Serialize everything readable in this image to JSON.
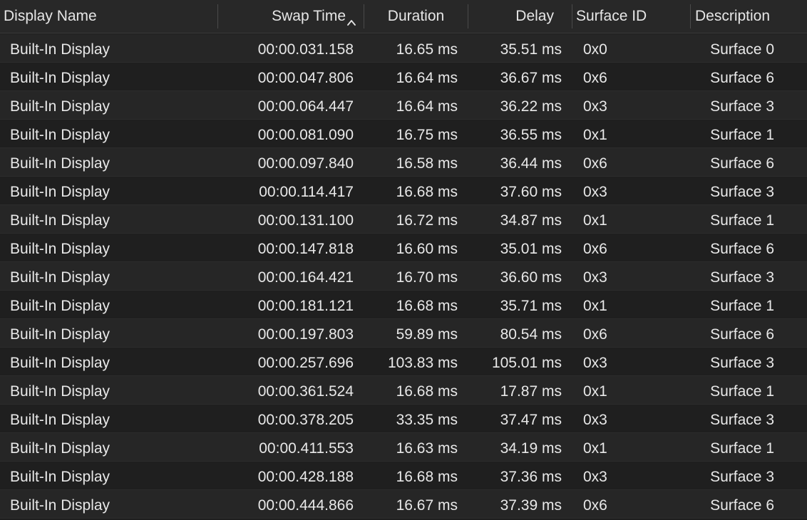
{
  "columns": {
    "display_name": "Display Name",
    "swap_time": "Swap Time",
    "duration": "Duration",
    "delay": "Delay",
    "surface_id": "Surface ID",
    "description": "Description",
    "sort_icon": "chevron-up-icon"
  },
  "rows": [
    {
      "display_name": "Built-In Display",
      "swap_time": "00:00.031.158",
      "duration": "16.65 ms",
      "delay": "35.51 ms",
      "surface_id": "0x0",
      "description": "Surface 0"
    },
    {
      "display_name": "Built-In Display",
      "swap_time": "00:00.047.806",
      "duration": "16.64 ms",
      "delay": "36.67 ms",
      "surface_id": "0x6",
      "description": "Surface 6"
    },
    {
      "display_name": "Built-In Display",
      "swap_time": "00:00.064.447",
      "duration": "16.64 ms",
      "delay": "36.22 ms",
      "surface_id": "0x3",
      "description": "Surface 3"
    },
    {
      "display_name": "Built-In Display",
      "swap_time": "00:00.081.090",
      "duration": "16.75 ms",
      "delay": "36.55 ms",
      "surface_id": "0x1",
      "description": "Surface 1"
    },
    {
      "display_name": "Built-In Display",
      "swap_time": "00:00.097.840",
      "duration": "16.58 ms",
      "delay": "36.44 ms",
      "surface_id": "0x6",
      "description": "Surface 6"
    },
    {
      "display_name": "Built-In Display",
      "swap_time": "00:00.114.417",
      "duration": "16.68 ms",
      "delay": "37.60 ms",
      "surface_id": "0x3",
      "description": "Surface 3"
    },
    {
      "display_name": "Built-In Display",
      "swap_time": "00:00.131.100",
      "duration": "16.72 ms",
      "delay": "34.87 ms",
      "surface_id": "0x1",
      "description": "Surface 1"
    },
    {
      "display_name": "Built-In Display",
      "swap_time": "00:00.147.818",
      "duration": "16.60 ms",
      "delay": "35.01 ms",
      "surface_id": "0x6",
      "description": "Surface 6"
    },
    {
      "display_name": "Built-In Display",
      "swap_time": "00:00.164.421",
      "duration": "16.70 ms",
      "delay": "36.60 ms",
      "surface_id": "0x3",
      "description": "Surface 3"
    },
    {
      "display_name": "Built-In Display",
      "swap_time": "00:00.181.121",
      "duration": "16.68 ms",
      "delay": "35.71 ms",
      "surface_id": "0x1",
      "description": "Surface 1"
    },
    {
      "display_name": "Built-In Display",
      "swap_time": "00:00.197.803",
      "duration": "59.89 ms",
      "delay": "80.54 ms",
      "surface_id": "0x6",
      "description": "Surface 6"
    },
    {
      "display_name": "Built-In Display",
      "swap_time": "00:00.257.696",
      "duration": "103.83 ms",
      "delay": "105.01 ms",
      "surface_id": "0x3",
      "description": "Surface 3"
    },
    {
      "display_name": "Built-In Display",
      "swap_time": "00:00.361.524",
      "duration": "16.68 ms",
      "delay": "17.87 ms",
      "surface_id": "0x1",
      "description": "Surface 1"
    },
    {
      "display_name": "Built-In Display",
      "swap_time": "00:00.378.205",
      "duration": "33.35 ms",
      "delay": "37.47 ms",
      "surface_id": "0x3",
      "description": "Surface 3"
    },
    {
      "display_name": "Built-In Display",
      "swap_time": "00:00.411.553",
      "duration": "16.63 ms",
      "delay": "34.19 ms",
      "surface_id": "0x1",
      "description": "Surface 1"
    },
    {
      "display_name": "Built-In Display",
      "swap_time": "00:00.428.188",
      "duration": "16.68 ms",
      "delay": "37.36 ms",
      "surface_id": "0x3",
      "description": "Surface 3"
    },
    {
      "display_name": "Built-In Display",
      "swap_time": "00:00.444.866",
      "duration": "16.67 ms",
      "delay": "37.39 ms",
      "surface_id": "0x6",
      "description": "Surface 6"
    }
  ]
}
